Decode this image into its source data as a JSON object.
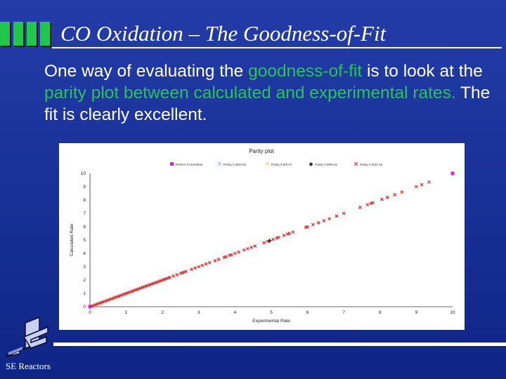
{
  "slide": {
    "title": "CO Oxidation – The Goodness-of-Fit",
    "body": {
      "part1": "One way of evaluating the ",
      "hl1": "goodness-of-fit",
      "part2": " is to look at the ",
      "hl2": "parity plot between calculated and experimental rates.",
      "part3": " The fit is clearly excellent."
    },
    "footer": "SE Reactors"
  },
  "colors": {
    "background": "#1f37a6",
    "highlight": "#29c452",
    "text": "#ffffff",
    "marker_parity": "#dd2222",
    "marker_perfect": "#e020e0"
  },
  "chart_data": {
    "type": "scatter",
    "title": "Parity plot",
    "xlabel": "Experimental Rate",
    "ylabel": "Calculated Rate",
    "xlim": [
      0,
      10
    ],
    "ylim": [
      0,
      10
    ],
    "xticks": [
      "0",
      "1",
      "2",
      "3",
      "4",
      "5",
      "6",
      "7",
      "8",
      "9",
      "10"
    ],
    "yticks": [
      "0",
      "1",
      "2",
      "3",
      "4",
      "5",
      "6",
      "7",
      "8",
      "9",
      "10"
    ],
    "grid": false,
    "legend_position": "top",
    "series": [
      {
        "name": "Perfect Correlation",
        "marker": "square",
        "color": "#e020e0",
        "points": [
          [
            0,
            0
          ],
          [
            10,
            10
          ]
        ]
      },
      {
        "name": "Parity 0.36/0.01",
        "marker": "x",
        "color": "#7fc7e8",
        "points": []
      },
      {
        "name": "Parity 0.8/0.07",
        "marker": "x",
        "color": "#e0e070",
        "points": []
      },
      {
        "name": "Parity 0.06/0.01",
        "marker": "diamond",
        "color": "#333333",
        "points": [
          [
            4.95,
            4.95
          ]
        ]
      },
      {
        "name": "Parity 0.04/0.16",
        "marker": "x",
        "color": "#dd2222",
        "points": [
          [
            0.05,
            0.05
          ],
          [
            0.1,
            0.1
          ],
          [
            0.15,
            0.15
          ],
          [
            0.2,
            0.2
          ],
          [
            0.25,
            0.25
          ],
          [
            0.3,
            0.3
          ],
          [
            0.35,
            0.35
          ],
          [
            0.4,
            0.4
          ],
          [
            0.45,
            0.45
          ],
          [
            0.5,
            0.5
          ],
          [
            0.55,
            0.55
          ],
          [
            0.6,
            0.6
          ],
          [
            0.65,
            0.65
          ],
          [
            0.7,
            0.7
          ],
          [
            0.75,
            0.75
          ],
          [
            0.8,
            0.8
          ],
          [
            0.85,
            0.85
          ],
          [
            0.9,
            0.9
          ],
          [
            0.95,
            0.95
          ],
          [
            1.0,
            1.0
          ],
          [
            1.05,
            1.05
          ],
          [
            1.1,
            1.1
          ],
          [
            1.15,
            1.15
          ],
          [
            1.2,
            1.2
          ],
          [
            1.25,
            1.25
          ],
          [
            1.3,
            1.3
          ],
          [
            1.35,
            1.35
          ],
          [
            1.4,
            1.4
          ],
          [
            1.45,
            1.45
          ],
          [
            1.5,
            1.5
          ],
          [
            1.55,
            1.55
          ],
          [
            1.6,
            1.6
          ],
          [
            1.65,
            1.65
          ],
          [
            1.7,
            1.7
          ],
          [
            1.75,
            1.75
          ],
          [
            1.8,
            1.8
          ],
          [
            1.85,
            1.85
          ],
          [
            1.9,
            1.9
          ],
          [
            1.95,
            1.95
          ],
          [
            2.0,
            2.0
          ],
          [
            2.05,
            2.05
          ],
          [
            2.1,
            2.1
          ],
          [
            2.15,
            2.15
          ],
          [
            2.2,
            2.2
          ],
          [
            2.3,
            2.3
          ],
          [
            2.4,
            2.4
          ],
          [
            2.5,
            2.5
          ],
          [
            2.55,
            2.55
          ],
          [
            2.6,
            2.6
          ],
          [
            2.65,
            2.65
          ],
          [
            2.8,
            2.8
          ],
          [
            2.9,
            2.9
          ],
          [
            3.0,
            3.0
          ],
          [
            3.1,
            3.1
          ],
          [
            3.2,
            3.2
          ],
          [
            3.3,
            3.3
          ],
          [
            3.45,
            3.45
          ],
          [
            3.55,
            3.55
          ],
          [
            3.7,
            3.7
          ],
          [
            3.75,
            3.75
          ],
          [
            3.85,
            3.85
          ],
          [
            3.9,
            3.9
          ],
          [
            4.0,
            4.0
          ],
          [
            4.1,
            4.1
          ],
          [
            4.25,
            4.25
          ],
          [
            4.35,
            4.35
          ],
          [
            4.45,
            4.45
          ],
          [
            4.55,
            4.55
          ],
          [
            4.8,
            4.8
          ],
          [
            4.9,
            4.9
          ],
          [
            5.05,
            5.05
          ],
          [
            5.15,
            5.15
          ],
          [
            5.2,
            5.2
          ],
          [
            5.35,
            5.35
          ],
          [
            5.45,
            5.45
          ],
          [
            5.5,
            5.5
          ],
          [
            5.6,
            5.6
          ],
          [
            5.95,
            5.95
          ],
          [
            6.0,
            6.0
          ],
          [
            6.15,
            6.15
          ],
          [
            6.3,
            6.3
          ],
          [
            6.45,
            6.45
          ],
          [
            6.6,
            6.6
          ],
          [
            6.8,
            6.8
          ],
          [
            7.0,
            7.0
          ],
          [
            7.45,
            7.45
          ],
          [
            7.65,
            7.65
          ],
          [
            7.75,
            7.75
          ],
          [
            7.8,
            7.8
          ],
          [
            8.05,
            8.05
          ],
          [
            8.2,
            8.2
          ],
          [
            8.4,
            8.4
          ],
          [
            8.6,
            8.6
          ],
          [
            9.0,
            9.0
          ],
          [
            9.15,
            9.15
          ],
          [
            9.35,
            9.35
          ]
        ]
      }
    ]
  }
}
